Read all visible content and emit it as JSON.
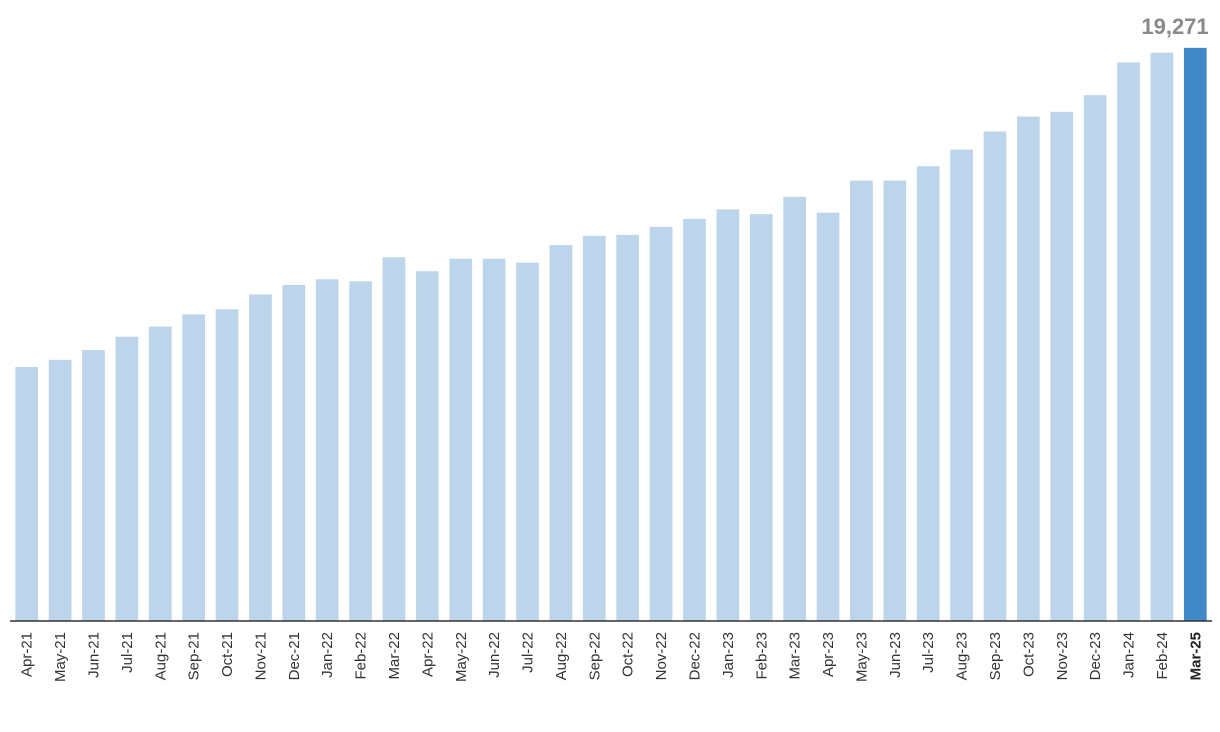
{
  "chart_data": {
    "type": "bar",
    "title": "",
    "xlabel": "",
    "ylabel": "",
    "categories": [
      "Apr-21",
      "May-21",
      "Jun-21",
      "Jul-21",
      "Aug-21",
      "Sep-21",
      "Oct-21",
      "Nov-21",
      "Dec-21",
      "Jan-22",
      "Feb-22",
      "Mar-22",
      "Apr-22",
      "May-22",
      "Jun-22",
      "Jul-22",
      "Aug-22",
      "Sep-22",
      "Oct-22",
      "Nov-22",
      "Dec-22",
      "Jan-23",
      "Feb-23",
      "Mar-23",
      "Apr-23",
      "May-23",
      "Jun-23",
      "Jul-23",
      "Aug-23",
      "Sep-23",
      "Oct-23",
      "Nov-23",
      "Dec-23",
      "Jan-24",
      "Feb-24",
      "Mar-25"
    ],
    "values": [
      8540,
      8780,
      9110,
      9560,
      9900,
      10310,
      10480,
      10980,
      11300,
      11490,
      11420,
      12230,
      11760,
      12180,
      12180,
      12050,
      12640,
      12950,
      12980,
      13250,
      13520,
      13840,
      13680,
      14260,
      13730,
      14810,
      14810,
      15290,
      15850,
      16460,
      16960,
      17120,
      17680,
      18780,
      19110,
      19271
    ],
    "highlight_index": 35,
    "data_label": "19,271",
    "ylim": [
      0,
      19300
    ],
    "grid": false,
    "legend": "none",
    "colors": {
      "bar": "#bdd5ea",
      "highlight": "#418ac8",
      "axis": "#333333",
      "label": "#8a8a8a"
    }
  }
}
